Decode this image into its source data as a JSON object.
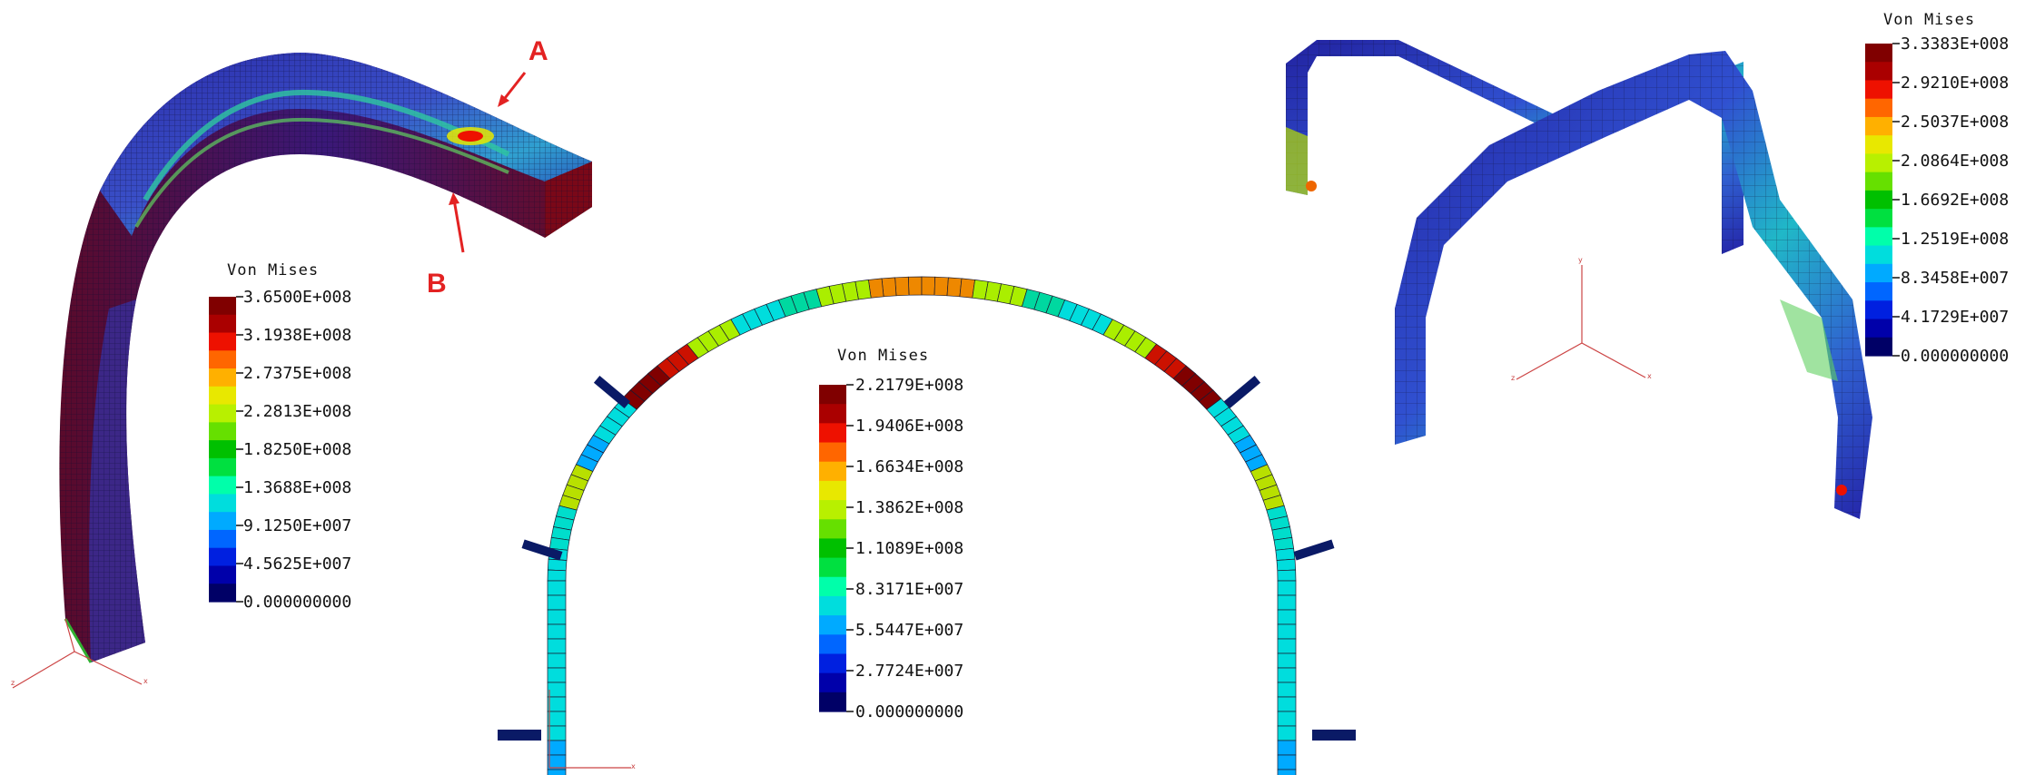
{
  "colors": {
    "scale": [
      "#000066",
      "#0000aa",
      "#0020e0",
      "#0066ff",
      "#00aaff",
      "#00dddd",
      "#00ffaa",
      "#00e040",
      "#00c000",
      "#66e000",
      "#b8f000",
      "#e8e800",
      "#ffb000",
      "#ff6600",
      "#ee1100",
      "#aa0000",
      "#800000"
    ],
    "annotation": "#e32222",
    "axis": "#cc4444",
    "mesh": "#1a1440",
    "support": "#0a1a66"
  },
  "panels": [
    {
      "id": "left-bend",
      "legend": {
        "title": "Von Mises",
        "values": [
          "3.6500E+008",
          "3.1938E+008",
          "2.7375E+008",
          "2.2813E+008",
          "1.8250E+008",
          "1.3688E+008",
          "9.1250E+007",
          "4.5625E+007",
          "0.000000000"
        ]
      },
      "markers": [
        "A",
        "B"
      ],
      "axes": [
        "z",
        "x"
      ]
    },
    {
      "id": "center-arch",
      "legend": {
        "title": "Von Mises",
        "values": [
          "2.2179E+008",
          "1.9406E+008",
          "1.6634E+008",
          "1.3862E+008",
          "1.1089E+008",
          "8.3171E+007",
          "5.5447E+007",
          "2.7724E+007",
          "0.000000000"
        ]
      },
      "axes": [
        "x"
      ]
    },
    {
      "id": "right-frame",
      "legend": {
        "title": "Von Mises",
        "values": [
          "3.3383E+008",
          "2.9210E+008",
          "2.5037E+008",
          "2.0864E+008",
          "1.6692E+008",
          "1.2519E+008",
          "8.3458E+007",
          "4.1729E+007",
          "0.000000000"
        ]
      },
      "axes": [
        "y",
        "z",
        "x"
      ]
    }
  ]
}
